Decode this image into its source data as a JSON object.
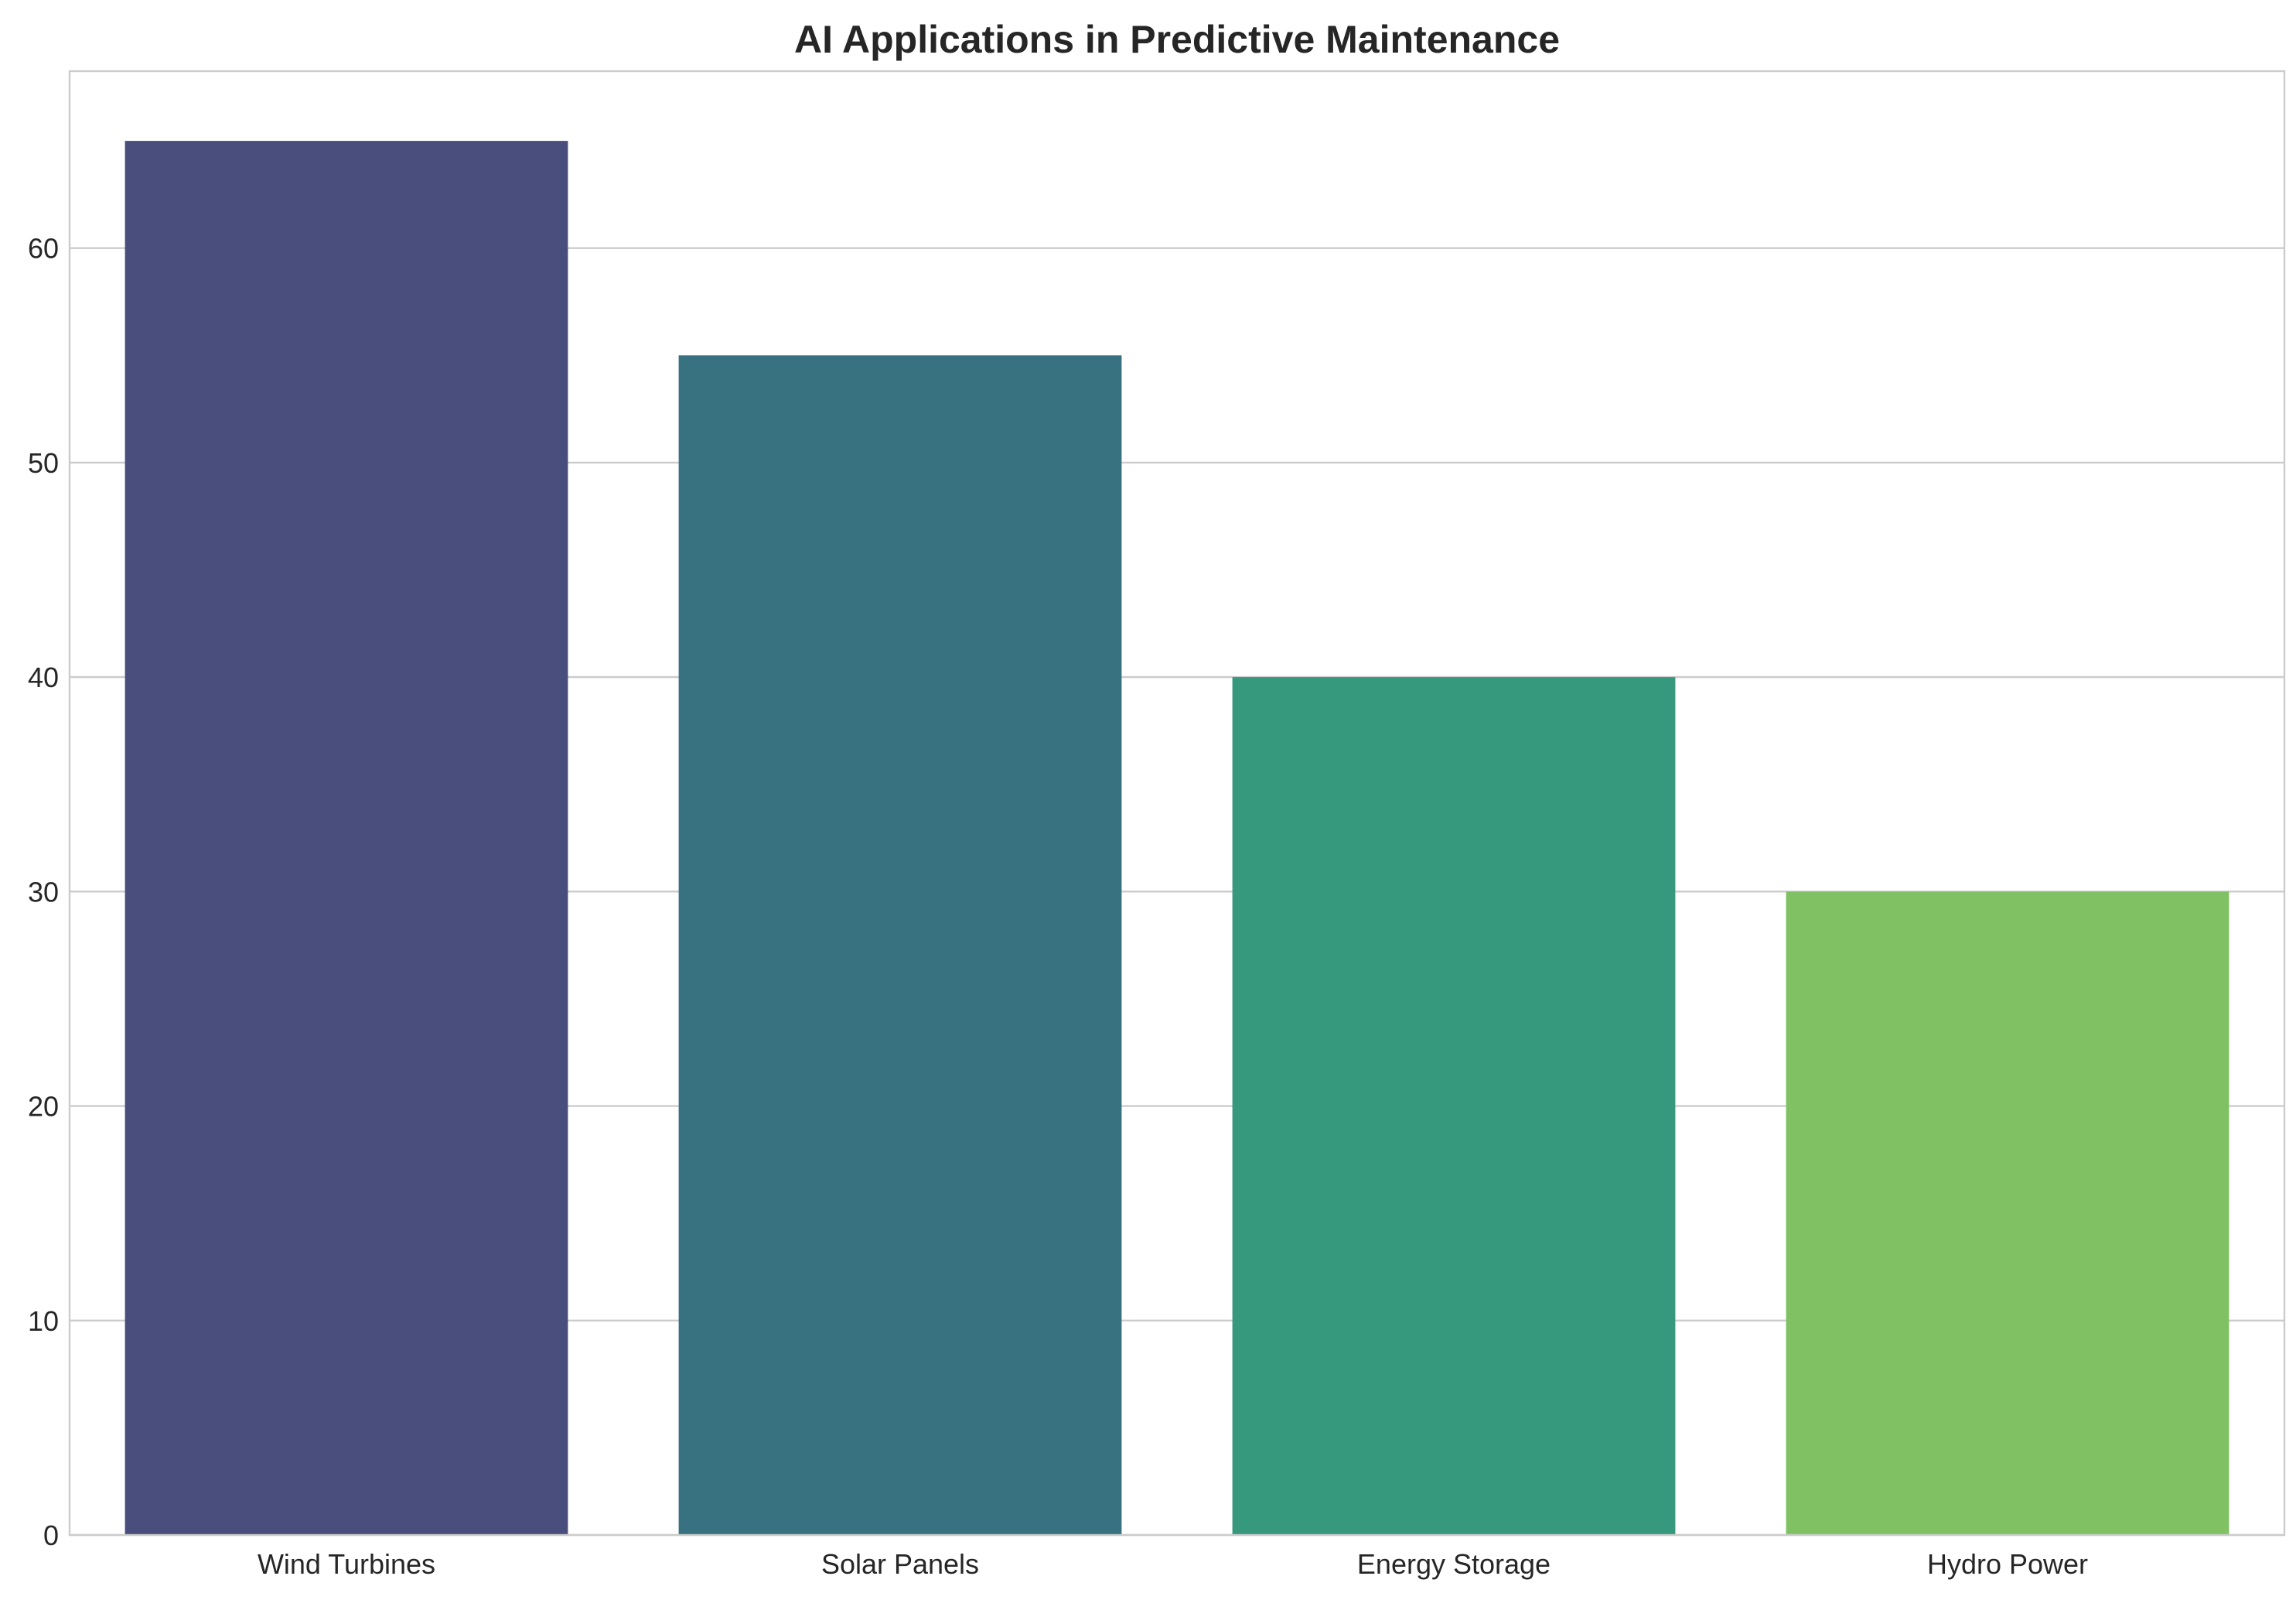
{
  "chart_data": {
    "type": "bar",
    "title": "AI Applications in Predictive Maintenance",
    "xlabel": "",
    "ylabel": "",
    "categories": [
      "Wind Turbines",
      "Solar Panels",
      "Energy Storage",
      "Hydro Power"
    ],
    "values": [
      65,
      55,
      40,
      30
    ],
    "colors": [
      "#4a4e7c",
      "#387180",
      "#36987c",
      "#80c263"
    ],
    "ylim": [
      0,
      68.25
    ],
    "yticks": [
      0,
      10,
      20,
      30,
      40,
      50,
      60
    ],
    "grid": "y-axis",
    "legend": "none"
  }
}
